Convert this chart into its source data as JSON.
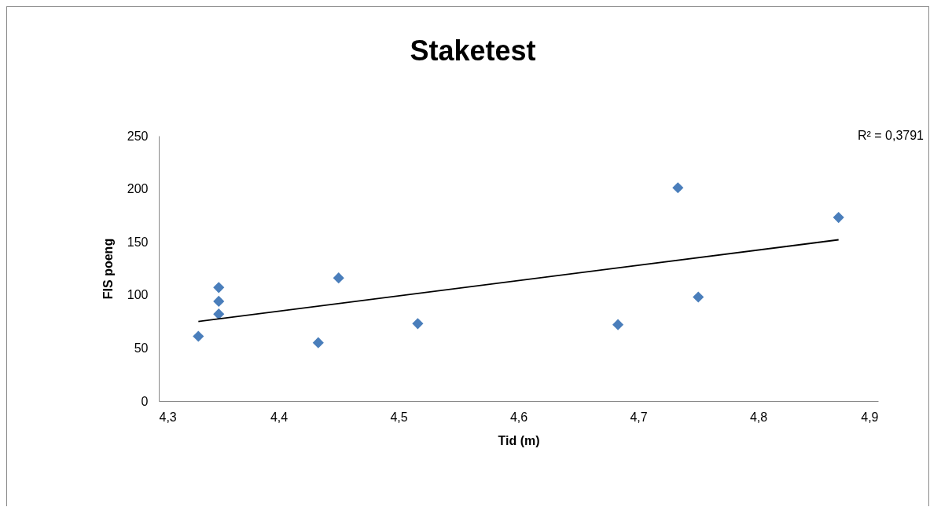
{
  "chart_data": {
    "type": "scatter",
    "title": "Staketest",
    "xlabel": "Tid (m)",
    "ylabel": "FIS poeng",
    "x": [
      4.333,
      4.35,
      4.35,
      4.35,
      4.433,
      4.45,
      4.516,
      4.683,
      4.733,
      4.75,
      4.867
    ],
    "series": [
      {
        "color": "#4a7ebb",
        "values": [
          61,
          82,
          94,
          107,
          55,
          116,
          73,
          72,
          201,
          98,
          173
        ]
      },
      {
        "type": "line",
        "marker": "none",
        "color": "#000000",
        "x": [
          4.333,
          4.867
        ],
        "values": [
          75,
          152
        ]
      }
    ],
    "marker": "diamond",
    "annotations": [
      "R² = 0,3791"
    ],
    "xlim": [
      4.3,
      4.9
    ],
    "xticks": [
      {
        "value": 4.3,
        "label": "4,3"
      },
      {
        "value": 4.4,
        "label": "4,4"
      },
      {
        "value": 4.5,
        "label": "4,5"
      },
      {
        "value": 4.6,
        "label": "4,6"
      },
      {
        "value": 4.7,
        "label": "4,7"
      },
      {
        "value": 4.8,
        "label": "4,8"
      },
      {
        "value": 4.9,
        "label": "4,9"
      }
    ],
    "ylim": [
      0,
      250
    ],
    "yticks": [
      0,
      50,
      100,
      150,
      200,
      250
    ],
    "grid": false
  }
}
